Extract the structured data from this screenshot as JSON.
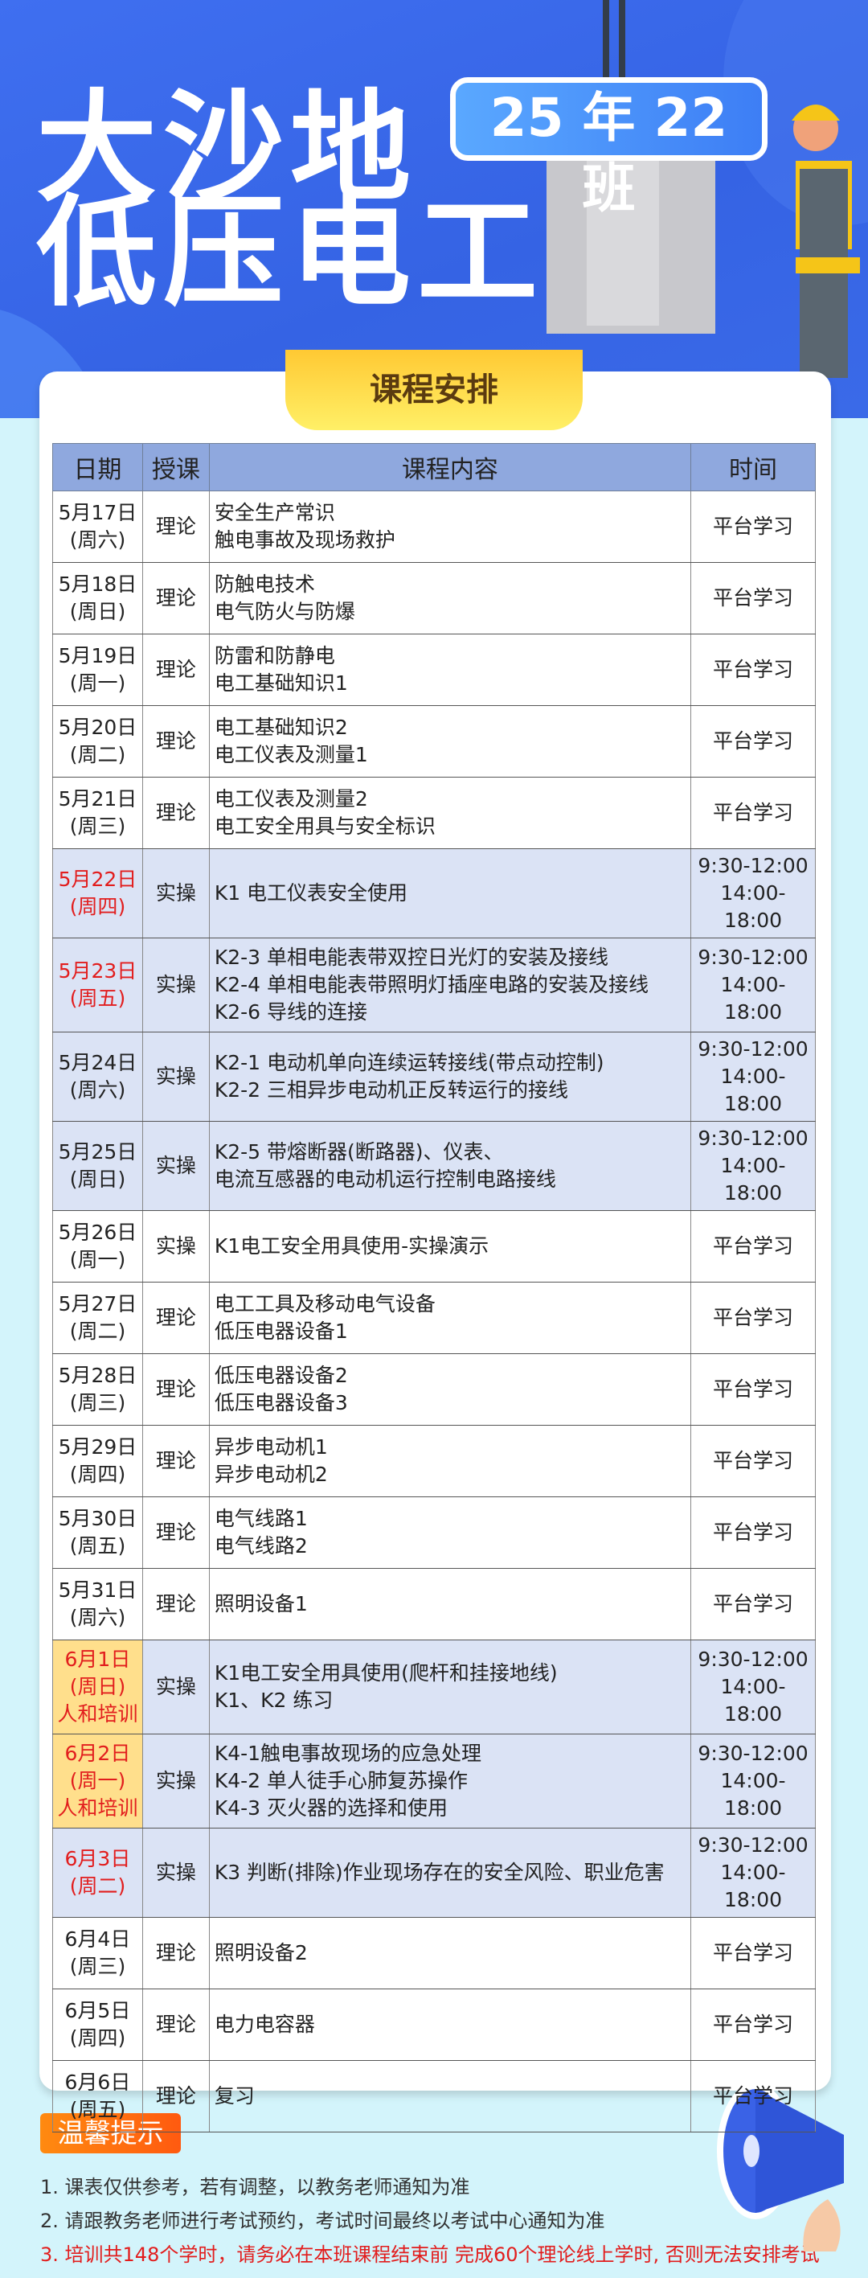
{
  "header": {
    "title_line1": "大沙地",
    "title_line2": "低压电工",
    "class_badge": "25 年 22 班"
  },
  "section_title": "课程安排",
  "table": {
    "columns": [
      "日期",
      "授课",
      "课程内容",
      "时间"
    ],
    "rows": [
      {
        "date": "5月17日",
        "weekday": "(周六)",
        "type": "理论",
        "content": [
          "安全生产常识",
          "触电事故及现场救护"
        ],
        "time": [
          "平台学习"
        ]
      },
      {
        "date": "5月18日",
        "weekday": "(周日)",
        "type": "理论",
        "content": [
          "防触电技术",
          "电气防火与防爆"
        ],
        "time": [
          "平台学习"
        ]
      },
      {
        "date": "5月19日",
        "weekday": "(周一)",
        "type": "理论",
        "content": [
          "防雷和防静电",
          "电工基础知识1"
        ],
        "time": [
          "平台学习"
        ]
      },
      {
        "date": "5月20日",
        "weekday": "(周二)",
        "type": "理论",
        "content": [
          "电工基础知识2",
          "电工仪表及测量1"
        ],
        "time": [
          "平台学习"
        ]
      },
      {
        "date": "5月21日",
        "weekday": "(周三)",
        "type": "理论",
        "content": [
          "电工仪表及测量2",
          "电工安全用具与安全标识"
        ],
        "time": [
          "平台学习"
        ]
      },
      {
        "date": "5月22日",
        "weekday": "(周四)",
        "type": "实操",
        "content": [
          "K1 电工仪表安全使用"
        ],
        "time": [
          "9:30-12:00",
          "14:00-18:00"
        ],
        "highlight": "red"
      },
      {
        "date": "5月23日",
        "weekday": "(周五)",
        "type": "实操",
        "content": [
          "K2-3 单相电能表带双控日光灯的安装及接线",
          "K2-4 单相电能表带照明灯插座电路的安装及接线",
          "K2-6 导线的连接"
        ],
        "time": [
          "9:30-12:00",
          "14:00-18:00"
        ],
        "highlight": "red"
      },
      {
        "date": "5月24日",
        "weekday": "(周六)",
        "type": "实操",
        "content": [
          "K2-1 电动机单向连续运转接线(带点动控制)",
          "K2-2 三相异步电动机正反转运行的接线"
        ],
        "time": [
          "9:30-12:00",
          "14:00-18:00"
        ]
      },
      {
        "date": "5月25日",
        "weekday": "(周日)",
        "type": "实操",
        "content": [
          "K2-5 带熔断器(断路器)、仪表、",
          "电流互感器的电动机运行控制电路接线"
        ],
        "time": [
          "9:30-12:00",
          "14:00-18:00"
        ]
      },
      {
        "date": "5月26日",
        "weekday": "(周一)",
        "type": "实操",
        "content": [
          "K1电工安全用具使用-实操演示"
        ],
        "time": [
          "平台学习"
        ],
        "plain": true
      },
      {
        "date": "5月27日",
        "weekday": "(周二)",
        "type": "理论",
        "content": [
          "电工工具及移动电气设备",
          "低压电器设备1"
        ],
        "time": [
          "平台学习"
        ]
      },
      {
        "date": "5月28日",
        "weekday": "(周三)",
        "type": "理论",
        "content": [
          "低压电器设备2",
          "低压电器设备3"
        ],
        "time": [
          "平台学习"
        ]
      },
      {
        "date": "5月29日",
        "weekday": "(周四)",
        "type": "理论",
        "content": [
          "异步电动机1",
          "异步电动机2"
        ],
        "time": [
          "平台学习"
        ]
      },
      {
        "date": "5月30日",
        "weekday": "(周五)",
        "type": "理论",
        "content": [
          "电气线路1",
          "电气线路2"
        ],
        "time": [
          "平台学习"
        ]
      },
      {
        "date": "5月31日",
        "weekday": "(周六)",
        "type": "理论",
        "content": [
          "照明设备1"
        ],
        "time": [
          "平台学习"
        ]
      },
      {
        "date": "6月1日",
        "weekday": "(周日)",
        "extra": "人和培训",
        "type": "实操",
        "content": [
          "K1电工安全用具使用(爬杆和挂接地线)",
          "K1、K2 练习"
        ],
        "time": [
          "9:30-12:00",
          "14:00-18:00"
        ],
        "highlight": "yellow"
      },
      {
        "date": "6月2日",
        "weekday": "(周一)",
        "extra": "人和培训",
        "type": "实操",
        "content": [
          "K4-1触电事故现场的应急处理",
          "K4-2 单人徒手心肺复苏操作",
          "K4-3 灭火器的选择和使用"
        ],
        "time": [
          "9:30-12:00",
          "14:00-18:00"
        ],
        "highlight": "yellow"
      },
      {
        "date": "6月3日",
        "weekday": "(周二)",
        "type": "实操",
        "content": [
          "K3 判断(排除)作业现场存在的安全风险、职业危害"
        ],
        "time": [
          "9:30-12:00",
          "14:00-18:00"
        ],
        "highlight": "red"
      },
      {
        "date": "6月4日",
        "weekday": "(周三)",
        "type": "理论",
        "content": [
          "照明设备2"
        ],
        "time": [
          "平台学习"
        ]
      },
      {
        "date": "6月5日",
        "weekday": "(周四)",
        "type": "理论",
        "content": [
          "电力电容器"
        ],
        "time": [
          "平台学习"
        ]
      },
      {
        "date": "6月6日",
        "weekday": "(周五)",
        "type": "理论",
        "content": [
          "复习"
        ],
        "time": [
          "平台学习"
        ]
      }
    ]
  },
  "tips": {
    "title": "温馨提示",
    "notes": [
      "1. 课表仅供参考，若有调整，以教务老师通知为准",
      "2. 请跟教务老师进行考试预约，考试时间最终以考试中心通知为准",
      "3. 培训共148个学时，请务必在本班课程结束前 完成60个理论线上学时, 否则无法安排考试"
    ]
  },
  "colors": {
    "hero_blue": "#3563e4",
    "header_row": "#8fa8de",
    "practical_row": "#dbe3f5",
    "highlight_yellow": "#ffdf8c",
    "alert_red": "#e21d1d",
    "tips_orange": "#ff6a10"
  }
}
